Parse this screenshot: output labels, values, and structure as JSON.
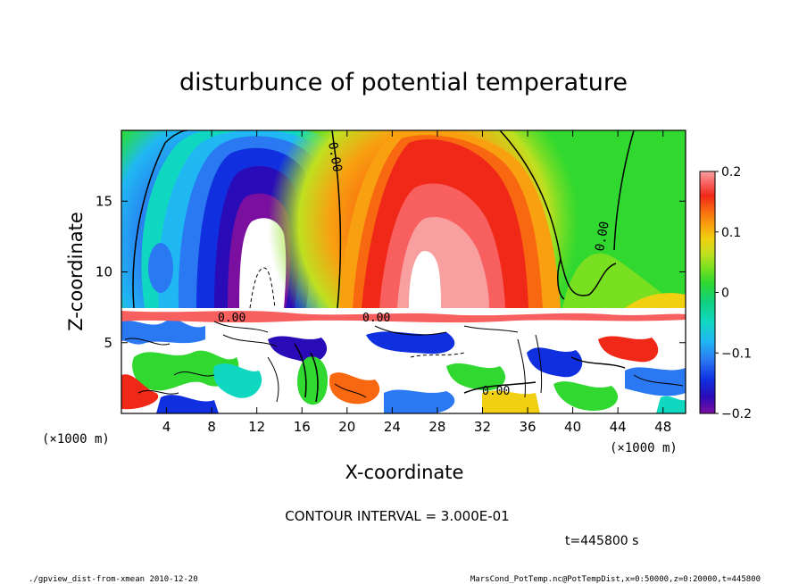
{
  "chart_data": {
    "type": "heatmap",
    "title": "disturbunce of potential temperature",
    "xlabel": "X-coordinate",
    "ylabel": "Z-coordinate",
    "x_unit_left": "(×1000 m)",
    "x_unit_right": "(×1000 m)",
    "xlim": [
      0,
      50
    ],
    "ylim": [
      0,
      20
    ],
    "x_ticks": [
      4,
      8,
      12,
      16,
      20,
      24,
      28,
      32,
      36,
      40,
      44,
      48
    ],
    "y_ticks": [
      5,
      10,
      15
    ],
    "colorbar": {
      "range": [
        -0.2,
        0.2
      ],
      "ticks": [
        {
          "value": 0.2,
          "label": "0.2"
        },
        {
          "value": 0.1,
          "label": "0.1"
        },
        {
          "value": 0.0,
          "label": "0"
        },
        {
          "value": -0.1,
          "label": "−0.1"
        },
        {
          "value": -0.2,
          "label": "−0.2"
        }
      ],
      "colors": [
        "#7a0fa0",
        "#2a0bb8",
        "#1030e0",
        "#2a78f2",
        "#20b8f2",
        "#10d8c0",
        "#10d080",
        "#30d830",
        "#78e020",
        "#c0e020",
        "#f0d010",
        "#f8a010",
        "#f86810",
        "#f02818",
        "#f86060",
        "#f8a0a0"
      ]
    },
    "features": [
      {
        "kind": "cold-core",
        "x": 12.5,
        "z_bottom": 7.5,
        "z_top": 19.5,
        "min_value": -0.2
      },
      {
        "kind": "warm-core",
        "x": 26.5,
        "z_bottom": 7.5,
        "z_top": 20,
        "max_value": 0.2
      }
    ],
    "contour_labels": [
      "0.00",
      "0.00",
      "0.00",
      "0.00",
      "0.00"
    ],
    "contour_interval_text": "CONTOUR INTERVAL = 3.000E-01",
    "time_text": "t=445800 s"
  },
  "footer": {
    "left": "./gpview_dist-from-xmean  2010-12-20",
    "right": "MarsCond_PotTemp.nc@PotTempDist,x=0:50000,z=0:20000,t=445800"
  }
}
